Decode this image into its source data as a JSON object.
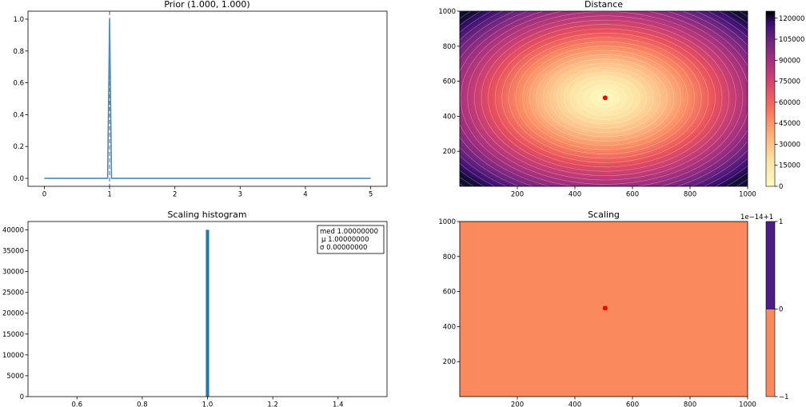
{
  "chart_data": [
    {
      "panel": "prior",
      "type": "line",
      "title": "Prior (1.000, 1.000)",
      "xlabel": "",
      "ylabel": "",
      "xlim": [
        -0.25,
        5.25
      ],
      "ylim": [
        -0.05,
        1.05
      ],
      "x_ticks": [
        "0",
        "1",
        "2",
        "3",
        "4",
        "5"
      ],
      "y_ticks": [
        "0.0",
        "0.2",
        "0.4",
        "0.6",
        "0.8",
        "1.0"
      ],
      "series": [
        {
          "x": [
            0,
            0.97,
            1.0,
            1.03,
            5
          ],
          "y": [
            0,
            0,
            1,
            0,
            0
          ],
          "color": "#4a8cc2"
        }
      ],
      "vline": {
        "x": 1.0,
        "style": "dashed",
        "color": "#808080"
      },
      "grid": false
    },
    {
      "panel": "distance",
      "type": "heatmap",
      "title": "Distance",
      "xlabel": "",
      "ylabel": "",
      "xlim": [
        0,
        1000
      ],
      "ylim": [
        0,
        1000
      ],
      "x_ticks": [
        "200",
        "400",
        "600",
        "800",
        "1000"
      ],
      "y_ticks": [
        "200",
        "400",
        "600",
        "800",
        "1000"
      ],
      "center": {
        "x": 505,
        "y": 505
      },
      "marker_color": "#ff0000",
      "colormap": "magma_r",
      "colorbar_ticks": [
        "0",
        "15000",
        "30000",
        "45000",
        "60000",
        "75000",
        "90000",
        "105000",
        "120000"
      ],
      "colorbar_range": [
        0,
        125000
      ]
    },
    {
      "panel": "histogram",
      "type": "bar",
      "title": "Scaling histogram",
      "xlabel": "",
      "ylabel": "",
      "xlim": [
        0.45,
        1.55
      ],
      "ylim": [
        0,
        42000
      ],
      "x_ticks": [
        "0.6",
        "0.8",
        "1.0",
        "1.2",
        "1.4"
      ],
      "y_ticks": [
        "0",
        "5000",
        "10000",
        "15000",
        "20000",
        "25000",
        "30000",
        "35000",
        "40000"
      ],
      "bars": [
        {
          "x": 1.0,
          "width": 0.01,
          "value": 40000
        }
      ],
      "bar_color": "#1f77b4",
      "stats_box": [
        "med 1.00000000",
        "μ 1.00000000",
        "σ 0.00000000"
      ]
    },
    {
      "panel": "scaling",
      "type": "heatmap",
      "title": "Scaling",
      "xlabel": "",
      "ylabel": "",
      "xlim": [
        0,
        1000
      ],
      "ylim": [
        0,
        1000
      ],
      "x_ticks": [
        "200",
        "400",
        "600",
        "800",
        "1000"
      ],
      "y_ticks": [
        "200",
        "400",
        "600",
        "800",
        "1000"
      ],
      "center": {
        "x": 505,
        "y": 505
      },
      "marker_color": "#ff0000",
      "fill_color": "#fa8a5e",
      "colorbar_ticks": [
        "1",
        "0",
        "−1"
      ],
      "colorbar_offset": "1e−14+1",
      "colorbar_colors": [
        "#4d1d86",
        "#fa8a5e"
      ]
    }
  ]
}
